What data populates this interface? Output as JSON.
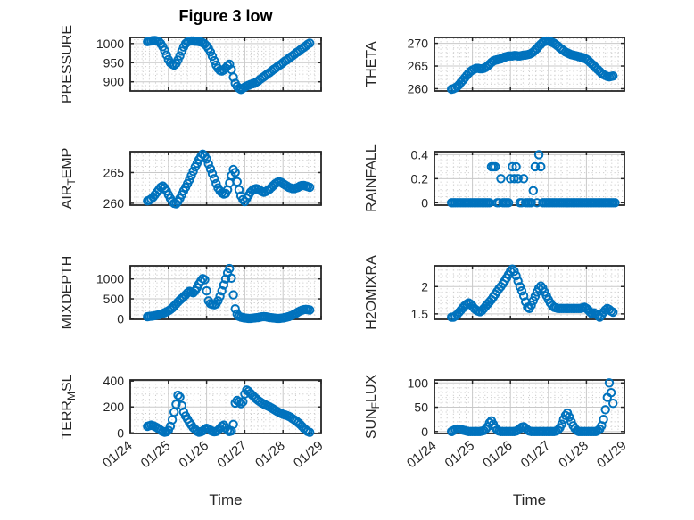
{
  "title": "Figure 3 low",
  "xlabel": "Time",
  "colors": {
    "marker": "#0072BD",
    "axis": "#262626",
    "major_grid": "#c9c9c9",
    "minor_grid": "#cdcdcd",
    "text": "#262626",
    "background": "#ffffff"
  },
  "x_axis": {
    "label": "Time",
    "xlim": [
      24,
      29
    ],
    "tick_values": [
      24,
      25,
      26,
      27,
      28,
      29
    ],
    "tick_labels": [
      "01/24",
      "01/25",
      "01/26",
      "01/27",
      "01/28",
      "01/29"
    ],
    "tick_rotation_deg": -40
  },
  "chart_data": [
    {
      "name": "pressure",
      "type": "scatter",
      "marker": "o",
      "row": 0,
      "col": 0,
      "ylabel": "PRESSURE",
      "ylabel_parts": [
        {
          "text": "PRESSURE",
          "sub": false
        }
      ],
      "ylim": [
        876,
        1016
      ],
      "yticks": [
        900,
        950,
        1000
      ],
      "ytick_labels": [
        "900",
        "950",
        "1000"
      ],
      "yminor_step": 10,
      "grid": "on",
      "minor_grid": "on",
      "x_start": 24.45,
      "x_step": 0.05,
      "values": [
        1005,
        1006,
        1007,
        1008,
        1008,
        1007,
        1005,
        1000,
        992,
        982,
        970,
        958,
        950,
        946,
        944,
        948,
        957,
        968,
        980,
        991,
        1000,
        1004,
        1006,
        1007,
        1007,
        1006,
        1006,
        1005,
        1004,
        1002,
        999,
        994,
        987,
        978,
        967,
        955,
        944,
        935,
        930,
        928,
        931,
        936,
        942,
        946,
        932,
        912,
        896,
        888,
        883,
        880,
        883,
        886,
        889,
        891,
        893,
        895,
        896,
        899,
        902,
        906,
        910,
        913,
        917,
        921,
        924,
        928,
        932,
        935,
        939,
        943,
        946,
        950,
        954,
        957,
        961,
        965,
        968,
        972,
        976,
        979,
        983,
        987,
        990,
        994,
        998,
        1001
      ]
    },
    {
      "name": "theta",
      "type": "scatter",
      "marker": "o",
      "row": 0,
      "col": 1,
      "ylabel": "THETA",
      "ylabel_parts": [
        {
          "text": "THETA",
          "sub": false
        }
      ],
      "ylim": [
        259.5,
        271.3
      ],
      "yticks": [
        260,
        265,
        270
      ],
      "ytick_labels": [
        "260",
        "265",
        "270"
      ],
      "yminor_step": 1,
      "grid": "on",
      "minor_grid": "on",
      "x_start": 24.45,
      "x_step": 0.05,
      "values": [
        259.9,
        260,
        260.2,
        260.5,
        260.9,
        261.4,
        261.9,
        262.4,
        262.9,
        263.4,
        263.8,
        264.1,
        264.3,
        264.5,
        264.5,
        264.4,
        264.4,
        264.5,
        264.7,
        265,
        265.4,
        265.8,
        266.1,
        266.3,
        266.4,
        266.5,
        266.6,
        266.8,
        267,
        267.1,
        267.2,
        267.2,
        267.2,
        267.3,
        267.3,
        267.2,
        267.2,
        267.3,
        267.4,
        267.4,
        267.5,
        267.6,
        267.8,
        268.1,
        268.5,
        268.9,
        269.4,
        269.8,
        270.2,
        270.4,
        270.5,
        270.5,
        270.4,
        270.2,
        270,
        269.7,
        269.4,
        269,
        268.7,
        268.4,
        268.1,
        267.9,
        267.7,
        267.5,
        267.4,
        267.3,
        267.2,
        267.1,
        267,
        266.9,
        266.7,
        266.5,
        266.2,
        265.8,
        265.4,
        265,
        264.6,
        264.2,
        263.8,
        263.4,
        263.1,
        262.9,
        262.7,
        262.6,
        262.7,
        262.8
      ]
    },
    {
      "name": "air-temp",
      "type": "scatter",
      "marker": "o",
      "row": 1,
      "col": 0,
      "ylabel": "AIR_TEMP",
      "ylabel_parts": [
        {
          "text": "AIR",
          "sub": false
        },
        {
          "text": "T",
          "sub": true
        },
        {
          "text": "EMP",
          "sub": false
        }
      ],
      "ylim": [
        259.7,
        268.4
      ],
      "yticks": [
        260,
        265
      ],
      "ytick_labels": [
        "260",
        "265"
      ],
      "yminor_step": 1,
      "grid": "on",
      "minor_grid": "on",
      "x_start": 24.45,
      "x_step": 0.05,
      "values": [
        260.4,
        260.5,
        260.7,
        261,
        261.4,
        261.8,
        262.2,
        262.6,
        262.8,
        262.5,
        262,
        261.4,
        260.8,
        260.3,
        260,
        259.9,
        260.3,
        260.8,
        261.4,
        262,
        262.6,
        263.2,
        263.8,
        264.5,
        265.2,
        265.9,
        266.5,
        267.1,
        267.6,
        268,
        267.7,
        267.2,
        266.4,
        265.6,
        264.8,
        264,
        263.2,
        262.5,
        262,
        261.7,
        261.5,
        261.6,
        262.2,
        263.3,
        264.5,
        265.5,
        265,
        263.5,
        262.2,
        261.2,
        260.6,
        260.3,
        260.8,
        261.3,
        261.8,
        262.1,
        262.3,
        262.4,
        262.3,
        262.1,
        261.9,
        261.8,
        261.9,
        262.1,
        262.3,
        262.6,
        262.9,
        263.2,
        263.4,
        263.5,
        263.4,
        263.2,
        263,
        262.8,
        262.6,
        262.5,
        262.4,
        262.4,
        262.5,
        262.6,
        262.8,
        262.9,
        262.9,
        262.8,
        262.7,
        262.6
      ]
    },
    {
      "name": "rainfall",
      "type": "scatter",
      "marker": "o",
      "row": 1,
      "col": 1,
      "ylabel": "RAINFALL",
      "ylabel_parts": [
        {
          "text": "RAINFALL",
          "sub": false
        }
      ],
      "ylim": [
        -0.02,
        0.425
      ],
      "yticks": [
        0,
        0.2,
        0.4
      ],
      "ytick_labels": [
        "0",
        "0.2",
        "0.4"
      ],
      "yminor_step": 0.05,
      "grid": "on",
      "minor_grid": "on",
      "x_start": 24.45,
      "x_step": 0.05,
      "values": [
        0,
        0,
        0,
        0,
        0,
        0,
        0,
        0,
        0,
        0,
        0,
        0,
        0,
        0,
        0,
        0,
        0,
        0,
        0,
        0,
        0,
        0.3,
        0.3,
        0.3,
        0,
        0,
        0.2,
        0,
        0,
        0,
        0,
        0.2,
        0.3,
        0.2,
        0.3,
        0.2,
        0,
        0,
        0.2,
        0,
        0,
        0,
        0,
        0.1,
        0.3,
        0,
        0.4,
        0.3,
        0,
        0,
        0,
        0,
        0,
        0,
        0,
        0,
        0,
        0,
        0,
        0,
        0,
        0,
        0,
        0,
        0,
        0,
        0,
        0,
        0,
        0,
        0,
        0,
        0,
        0,
        0,
        0,
        0,
        0,
        0,
        0,
        0,
        0,
        0,
        0,
        0,
        0,
        0
      ]
    },
    {
      "name": "mixdepth",
      "type": "scatter",
      "marker": "o",
      "row": 2,
      "col": 0,
      "ylabel": "MIXDEPTH",
      "ylabel_parts": [
        {
          "text": "MIXDEPTH",
          "sub": false
        }
      ],
      "ylim": [
        -15,
        1330
      ],
      "yticks": [
        0,
        500,
        1000
      ],
      "ytick_labels": [
        "0",
        "500",
        "1000"
      ],
      "yminor_step": 100,
      "grid": "on",
      "minor_grid": "on",
      "x_start": 24.45,
      "x_step": 0.05,
      "values": [
        50,
        60,
        65,
        70,
        80,
        90,
        100,
        115,
        130,
        150,
        175,
        200,
        230,
        270,
        320,
        370,
        420,
        470,
        510,
        550,
        600,
        650,
        690,
        670,
        650,
        700,
        780,
        870,
        950,
        1010,
        980,
        700,
        450,
        380,
        360,
        350,
        370,
        450,
        560,
        700,
        850,
        1000,
        1150,
        1260,
        1020,
        600,
        250,
        120,
        60,
        40,
        30,
        20,
        15,
        10,
        10,
        15,
        20,
        25,
        30,
        40,
        50,
        55,
        50,
        40,
        30,
        25,
        20,
        15,
        10,
        10,
        15,
        20,
        30,
        40,
        55,
        70,
        90,
        115,
        140,
        170,
        195,
        215,
        230,
        235,
        230,
        220
      ]
    },
    {
      "name": "h2omixra",
      "type": "scatter",
      "marker": "o",
      "row": 2,
      "col": 1,
      "ylabel": "H2OMIXRA",
      "ylabel_parts": [
        {
          "text": "H2OMIXRA",
          "sub": false
        }
      ],
      "ylim": [
        1.4,
        2.38
      ],
      "yticks": [
        1.5,
        2
      ],
      "ytick_labels": [
        "1.5",
        "2"
      ],
      "yminor_step": 0.1,
      "grid": "on",
      "minor_grid": "on",
      "x_start": 24.45,
      "x_step": 0.05,
      "values": [
        1.44,
        1.44,
        1.46,
        1.49,
        1.53,
        1.57,
        1.61,
        1.65,
        1.68,
        1.7,
        1.68,
        1.64,
        1.6,
        1.57,
        1.55,
        1.54,
        1.56,
        1.6,
        1.64,
        1.68,
        1.72,
        1.76,
        1.81,
        1.86,
        1.91,
        1.96,
        2,
        2.05,
        2.1,
        2.16,
        2.22,
        2.28,
        2.32,
        2.28,
        2.2,
        2.1,
        2,
        1.92,
        1.83,
        1.72,
        1.62,
        1.6,
        1.66,
        1.74,
        1.82,
        1.9,
        1.97,
        2.01,
        1.97,
        1.9,
        1.83,
        1.76,
        1.7,
        1.65,
        1.62,
        1.61,
        1.6,
        1.6,
        1.6,
        1.6,
        1.6,
        1.6,
        1.6,
        1.6,
        1.6,
        1.6,
        1.6,
        1.6,
        1.6,
        1.61,
        1.62,
        1.6,
        1.57,
        1.53,
        1.5,
        1.52,
        1.5,
        1.47,
        1.44,
        1.48,
        1.53,
        1.57,
        1.6,
        1.58,
        1.55,
        1.53
      ]
    },
    {
      "name": "terr-msl",
      "type": "scatter",
      "marker": "o",
      "row": 3,
      "col": 0,
      "ylabel": "TERR_MSL",
      "ylabel_parts": [
        {
          "text": "TERR",
          "sub": false
        },
        {
          "text": "M",
          "sub": true
        },
        {
          "text": "SL",
          "sub": false
        }
      ],
      "ylim": [
        -5,
        408
      ],
      "yticks": [
        0,
        200,
        400
      ],
      "ytick_labels": [
        "0",
        "200",
        "400"
      ],
      "yminor_step": 50,
      "grid": "on",
      "minor_grid": "on",
      "x_start": 24.45,
      "x_step": 0.05,
      "values": [
        50,
        55,
        60,
        55,
        48,
        40,
        30,
        20,
        10,
        5,
        8,
        20,
        50,
        100,
        160,
        220,
        290,
        275,
        210,
        160,
        130,
        105,
        80,
        60,
        40,
        25,
        12,
        5,
        8,
        15,
        25,
        35,
        30,
        20,
        12,
        8,
        10,
        20,
        35,
        50,
        60,
        40,
        20,
        10,
        15,
        65,
        230,
        250,
        240,
        225,
        240,
        300,
        330,
        320,
        305,
        290,
        275,
        262,
        250,
        240,
        230,
        222,
        214,
        207,
        200,
        192,
        183,
        174,
        165,
        157,
        150,
        144,
        139,
        134,
        128,
        120,
        110,
        100,
        90,
        78,
        65,
        50,
        35,
        22,
        10,
        4
      ]
    },
    {
      "name": "sun-flux",
      "type": "scatter",
      "marker": "o",
      "row": 3,
      "col": 1,
      "ylabel": "SUN_FLUX",
      "ylabel_parts": [
        {
          "text": "SUN",
          "sub": false
        },
        {
          "text": "F",
          "sub": true
        },
        {
          "text": "LUX",
          "sub": false
        }
      ],
      "ylim": [
        -4,
        106
      ],
      "yticks": [
        0,
        50,
        100
      ],
      "ytick_labels": [
        "0",
        "50",
        "100"
      ],
      "yminor_step": 10,
      "grid": "on",
      "minor_grid": "on",
      "x_start": 24.45,
      "x_step": 0.05,
      "values": [
        0,
        2,
        4,
        5,
        5,
        4,
        3,
        2,
        1,
        0,
        0,
        0,
        0,
        0,
        0,
        0,
        1,
        2,
        5,
        10,
        18,
        22,
        15,
        8,
        3,
        1,
        0,
        0,
        0,
        0,
        0,
        0,
        0,
        0,
        1,
        3,
        6,
        9,
        10,
        7,
        3,
        1,
        0,
        0,
        0,
        0,
        0,
        0,
        0,
        0,
        0,
        0,
        0,
        0,
        0,
        1,
        3,
        8,
        15,
        25,
        33,
        38,
        30,
        20,
        12,
        6,
        2,
        0,
        0,
        0,
        0,
        0,
        0,
        0,
        0,
        0,
        0,
        2,
        5,
        12,
        25,
        45,
        70,
        100,
        80,
        58
      ]
    }
  ]
}
